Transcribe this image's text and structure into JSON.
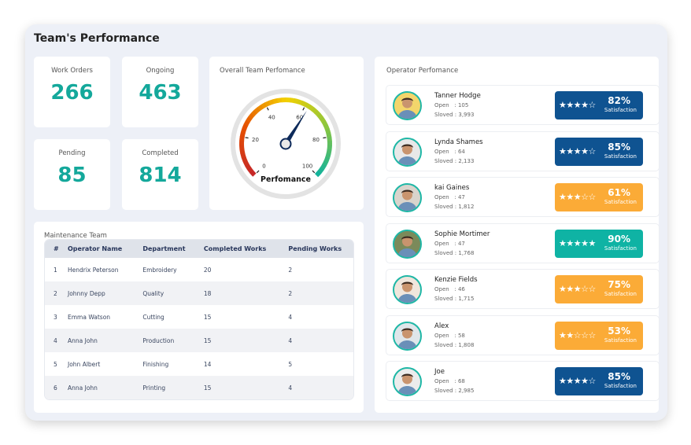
{
  "title": "Team's Performance",
  "stats": [
    {
      "label": "Work Orders",
      "value": "266"
    },
    {
      "label": "Ongoing",
      "value": "463"
    },
    {
      "label": "Pending",
      "value": "85"
    },
    {
      "label": "Completed",
      "value": "814"
    }
  ],
  "gauge": {
    "title": "Overall Team Perfomance",
    "label": "Perfomance",
    "min": 0,
    "max": 100,
    "value": 62,
    "ticks": [
      "0",
      "20",
      "40",
      "60",
      "80",
      "100"
    ],
    "colors": [
      "#c62828",
      "#e65100",
      "#f4d000",
      "#8cc63e",
      "#14b39b"
    ]
  },
  "maintenance": {
    "title": "Maintenance Team",
    "headers": [
      "#",
      "Operator Name",
      "Department",
      "Completed Works",
      "Pending Works"
    ],
    "rows": [
      [
        "1",
        "Hendrix Peterson",
        "Embroidery",
        "20",
        "2"
      ],
      [
        "2",
        "Johnny Depp",
        "Quality",
        "18",
        "2"
      ],
      [
        "3",
        "Emma Watson",
        "Cutting",
        "15",
        "4"
      ],
      [
        "4",
        "Anna John",
        "Production",
        "15",
        "4"
      ],
      [
        "5",
        "John Albert",
        "Finishing",
        "14",
        "5"
      ],
      [
        "6",
        "Anna John",
        "Printing",
        "15",
        "4"
      ]
    ]
  },
  "operators": {
    "title": "Operator Perfomance",
    "open_label": "Open   : ",
    "solved_label": "Sloved : ",
    "satisfaction_label": "Satisfaction",
    "items": [
      {
        "name": "Tanner Hodge",
        "open": "105",
        "solved": "3,993",
        "pct": "82%",
        "stars": 4,
        "color": "#0f5391",
        "avatar_bg": "#f3d56b"
      },
      {
        "name": "Lynda Shames",
        "open": "64",
        "solved": "2,133",
        "pct": "85%",
        "stars": 4,
        "color": "#0f5391",
        "avatar_bg": "#e8e8e8"
      },
      {
        "name": "kai Gaines",
        "open": "47",
        "solved": "1,812",
        "pct": "61%",
        "stars": 3,
        "color": "#fbab37",
        "avatar_bg": "#d9d4cc"
      },
      {
        "name": "Sophie Mortimer",
        "open": "47",
        "solved": "1,768",
        "pct": "90%",
        "stars": 5,
        "color": "#0fb3a4",
        "avatar_bg": "#7b8a5a"
      },
      {
        "name": "Kenzie Fields",
        "open": "46",
        "solved": "1,715",
        "pct": "75%",
        "stars": 3,
        "color": "#fbab37",
        "avatar_bg": "#f0e6dc"
      },
      {
        "name": "Alex",
        "open": "58",
        "solved": "1,808",
        "pct": "53%",
        "stars": 2,
        "color": "#fbab37",
        "avatar_bg": "#dfe6ea"
      },
      {
        "name": "Joe",
        "open": "68",
        "solved": "2,985",
        "pct": "85%",
        "stars": 4,
        "color": "#0f5391",
        "avatar_bg": "#ececec"
      }
    ]
  }
}
